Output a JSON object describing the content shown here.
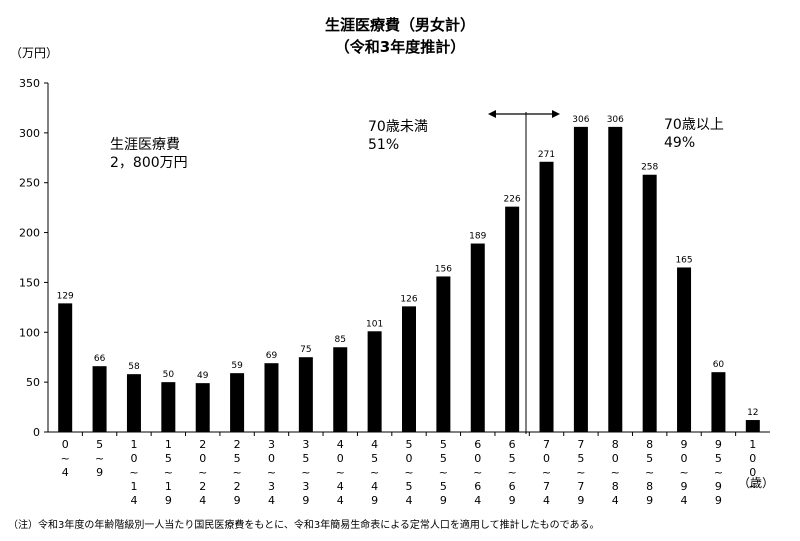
{
  "title": "生涯医療費（男女計）",
  "subtitle": "（令和3年度推計）",
  "y_unit": "（万円）",
  "x_unit": "（歳）",
  "annotations": {
    "total_label": "生涯医療費",
    "total_value": "2，800万円",
    "under70_label": "70歳未満",
    "under70_pct": "51%",
    "over70_label": "70歳以上",
    "over70_pct": "49%"
  },
  "footnote": "（注）令和3年度の年齢階級別一人当たり国民医療費をもとに、令和3年簡易生命表による定常人口を適用して推計したものである。",
  "chart_data": {
    "type": "bar",
    "title": "生涯医療費（男女計）",
    "subtitle": "（令和3年度推計）",
    "ylabel": "（万円）",
    "xlabel": "（歳）",
    "ylim": [
      0,
      350
    ],
    "yticks": [
      0,
      50,
      100,
      150,
      200,
      250,
      300,
      350
    ],
    "grid": false,
    "bar_color": "#000000",
    "categories": [
      "0~4",
      "5~9",
      "10~14",
      "15~19",
      "20~24",
      "25~29",
      "30~34",
      "35~39",
      "40~44",
      "45~49",
      "50~54",
      "55~59",
      "60~64",
      "65~69",
      "70~74",
      "75~79",
      "80~84",
      "85~89",
      "90~94",
      "95~99",
      "100~"
    ],
    "values": [
      129,
      66,
      58,
      50,
      49,
      59,
      69,
      75,
      85,
      101,
      126,
      156,
      189,
      226,
      271,
      306,
      306,
      258,
      165,
      60,
      12
    ]
  }
}
